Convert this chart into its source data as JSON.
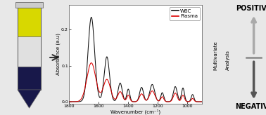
{
  "background_color": "#e8e8e8",
  "plot_xlim": [
    1800,
    900
  ],
  "plot_ylim": [
    -0.005,
    0.27
  ],
  "xlabel": "Wavenumber (cm⁻¹)",
  "ylabel": "Absorbance (a.u)",
  "wbc_color": "#111111",
  "plasma_color": "#dd0000",
  "positive_label": "POSITIVE",
  "negative_label": "NEGATIVE",
  "multivariate_label": "Multivariate",
  "analysis_label": "Analysis",
  "xticks": [
    1800,
    1600,
    1400,
    1200,
    1000
  ],
  "yticks": [
    0.0,
    0.1,
    0.2
  ],
  "tube_yellow": "#d8d800",
  "tube_white": "#e0e0e0",
  "tube_dark": "#18184a",
  "arrow_gray": "#888888",
  "arrow_color_up": "#aaaaaa",
  "arrow_color_down": "#555555"
}
